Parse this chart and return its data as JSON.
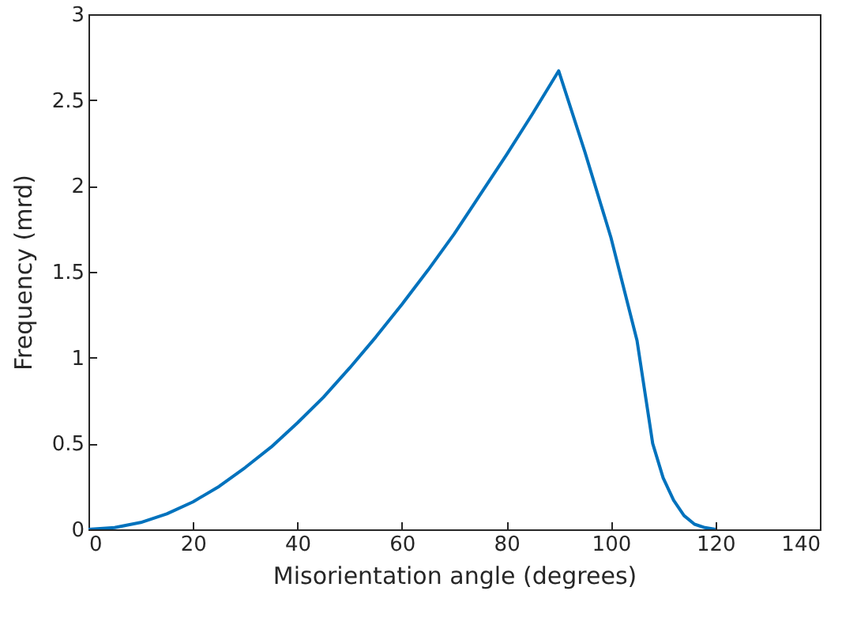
{
  "chart_data": {
    "type": "line",
    "xlabel": "Misorientation angle (degrees)",
    "ylabel": "Frequency (mrd)",
    "x": [
      0,
      5,
      10,
      15,
      20,
      25,
      30,
      35,
      40,
      45,
      50,
      55,
      60,
      65,
      70,
      75,
      80,
      85,
      90,
      95,
      100,
      105,
      108,
      110,
      112,
      114,
      116,
      118,
      120
    ],
    "series": [
      {
        "color": "#0072bd",
        "values": [
          0,
          0.01,
          0.04,
          0.09,
          0.16,
          0.25,
          0.36,
          0.48,
          0.62,
          0.77,
          0.94,
          1.12,
          1.31,
          1.51,
          1.72,
          1.95,
          2.18,
          2.42,
          2.67,
          2.2,
          1.7,
          1.1,
          0.5,
          0.3,
          0.17,
          0.08,
          0.03,
          0.01,
          0
        ]
      }
    ],
    "xlim": [
      0,
      140
    ],
    "xticks": [
      0,
      20,
      40,
      60,
      80,
      100,
      120,
      140
    ],
    "ylim": [
      0,
      3
    ],
    "yticks": [
      0,
      0.5,
      1,
      1.5,
      2,
      2.5,
      3
    ],
    "grid": false,
    "marker": "none",
    "line_style": "solid"
  }
}
